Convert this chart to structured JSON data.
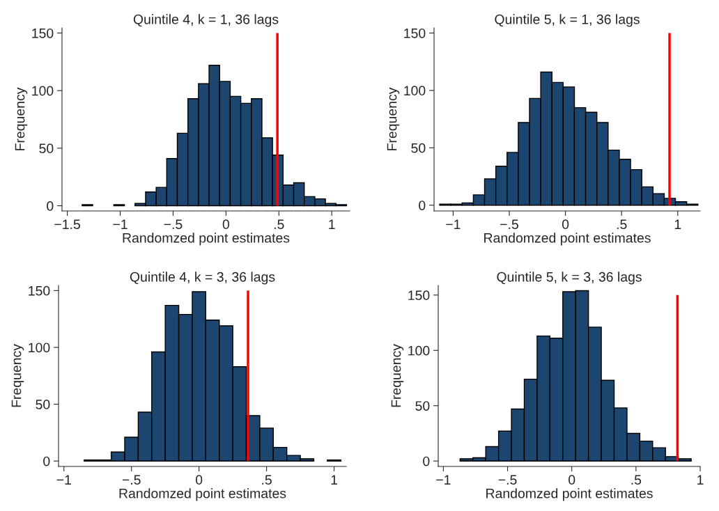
{
  "chart_data": [
    {
      "type": "histogram",
      "title": "Quintile 4, k = 1, 36 lags",
      "xlabel": "Randomzed point estimates",
      "ylabel": "Frequency",
      "color": "#1c4670",
      "bins": [
        -1.36,
        -1.26,
        -1.16,
        -1.06,
        -0.96,
        -0.86,
        -0.76,
        -0.66,
        -0.56,
        -0.46,
        -0.36,
        -0.26,
        -0.16,
        -0.06,
        0.04,
        0.14,
        0.24,
        0.34,
        0.44,
        0.54,
        0.64,
        0.74,
        0.84,
        0.94,
        1.04,
        1.14
      ],
      "values": [
        1,
        0,
        0,
        1,
        0,
        2,
        12,
        16,
        41,
        63,
        93,
        106,
        122,
        108,
        95,
        89,
        93,
        59,
        44,
        18,
        20,
        8,
        6,
        2,
        1
      ],
      "xlim": [
        -1.55,
        1.17
      ],
      "ylim": [
        -4.5,
        154.5
      ],
      "xticks": [
        {
          "value": -1.5,
          "label": "−1.5"
        },
        {
          "value": -1,
          "label": "−1"
        },
        {
          "value": -0.5,
          "label": "−.5"
        },
        0,
        {
          "value": 0.5,
          "label": ".5"
        },
        1
      ],
      "yticks": [
        0,
        50,
        100,
        150
      ],
      "grid": false,
      "ref_lines": [
        {
          "axis": "x",
          "value": 0.486,
          "color": "#ff0000"
        }
      ]
    },
    {
      "type": "histogram",
      "title": "Quintile 5, k = 1, 36 lags",
      "xlabel": "Randomzed point estimates",
      "ylabel": "Frequency",
      "color": "#1c4670",
      "bins": [
        -1.12,
        -1.02,
        -0.92,
        -0.82,
        -0.72,
        -0.62,
        -0.52,
        -0.42,
        -0.32,
        -0.22,
        -0.12,
        -0.02,
        0.08,
        0.18,
        0.28,
        0.38,
        0.48,
        0.58,
        0.68,
        0.78,
        0.88,
        0.98,
        1.08,
        1.18
      ],
      "values": [
        1,
        1,
        2,
        9,
        23,
        34,
        46,
        72,
        93,
        116,
        107,
        103,
        85,
        81,
        72,
        48,
        40,
        31,
        16,
        10,
        6,
        3,
        1
      ],
      "xlim": [
        -1.17,
        1.2
      ],
      "ylim": [
        -5,
        154.5
      ],
      "xticks": [
        {
          "value": -1,
          "label": "−1"
        },
        {
          "value": -0.5,
          "label": "−.5"
        },
        0,
        {
          "value": 0.5,
          "label": ".5"
        },
        1
      ],
      "yticks": [
        0,
        50,
        100,
        150
      ],
      "grid": false,
      "ref_lines": [
        {
          "axis": "x",
          "value": 0.927,
          "color": "#ff0000"
        }
      ]
    },
    {
      "type": "histogram",
      "title": "Quintile 4, k = 3, 36 lags",
      "xlabel": "Randomzed point estimates",
      "ylabel": "Frequency",
      "color": "#1c4670",
      "bins": [
        -0.85,
        -0.75,
        -0.65,
        -0.55,
        -0.45,
        -0.35,
        -0.25,
        -0.15,
        -0.05,
        0.05,
        0.15,
        0.25,
        0.35,
        0.45,
        0.55,
        0.65,
        0.75,
        0.85,
        0.95,
        1.05
      ],
      "values": [
        1,
        1,
        8,
        21,
        43,
        96,
        137,
        129,
        149,
        124,
        119,
        83,
        40,
        29,
        12,
        5,
        2,
        0,
        1
      ],
      "xlim": [
        -1.04,
        1.09
      ],
      "ylim": [
        -4.75,
        154.5
      ],
      "xticks": [
        {
          "value": -1,
          "label": "−1"
        },
        {
          "value": -0.5,
          "label": "−.5"
        },
        0,
        {
          "value": 0.5,
          "label": ".5"
        },
        1
      ],
      "yticks": [
        0,
        50,
        100,
        150
      ],
      "grid": false,
      "ref_lines": [
        {
          "axis": "x",
          "value": 0.363,
          "color": "#ff0000"
        }
      ]
    },
    {
      "type": "histogram",
      "title": "Quintile 5, k = 3, 36 lags",
      "xlabel": "Randomzed point estimates",
      "ylabel": "Frequency",
      "color": "#1c4670",
      "bins": [
        -0.87,
        -0.77,
        -0.67,
        -0.57,
        -0.47,
        -0.37,
        -0.27,
        -0.17,
        -0.07,
        0.03,
        0.13,
        0.23,
        0.33,
        0.43,
        0.53,
        0.63,
        0.73,
        0.83,
        0.93
      ],
      "values": [
        2,
        3,
        13,
        27,
        47,
        74,
        113,
        111,
        153,
        154,
        121,
        73,
        48,
        25,
        18,
        12,
        4,
        2
      ],
      "xlim": [
        -1.04,
        1.0
      ],
      "ylim": [
        -4.9,
        158.7
      ],
      "xticks": [
        {
          "value": -1,
          "label": "−1"
        },
        {
          "value": -0.5,
          "label": "−.5"
        },
        0,
        {
          "value": 0.5,
          "label": ".5"
        },
        1
      ],
      "yticks": [
        0,
        50,
        100,
        150
      ],
      "grid": false,
      "ref_lines": [
        {
          "axis": "x",
          "value": 0.823,
          "color": "#ff0000"
        }
      ]
    }
  ]
}
